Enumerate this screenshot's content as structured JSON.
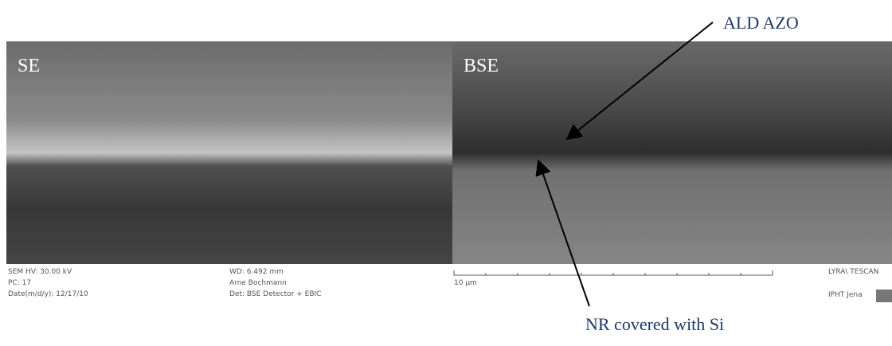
{
  "panels": [
    {
      "label": "SE"
    },
    {
      "label": "BSE"
    }
  ],
  "info_bar": {
    "left": [
      "SEM HV: 30.00 kV",
      "PC: 17",
      "Date(m/d/y): 12/17/10"
    ],
    "middle": [
      "WD: 6.492 mm",
      "Arne Bochmann",
      "Det: BSE Detector + EBIC"
    ],
    "scale": "10 µm",
    "right": [
      "LYRA\\ TESCAN",
      "IPHT Jena"
    ]
  },
  "annotations": [
    {
      "label": "ALD AZO"
    },
    {
      "label": "NR covered with Si"
    }
  ]
}
